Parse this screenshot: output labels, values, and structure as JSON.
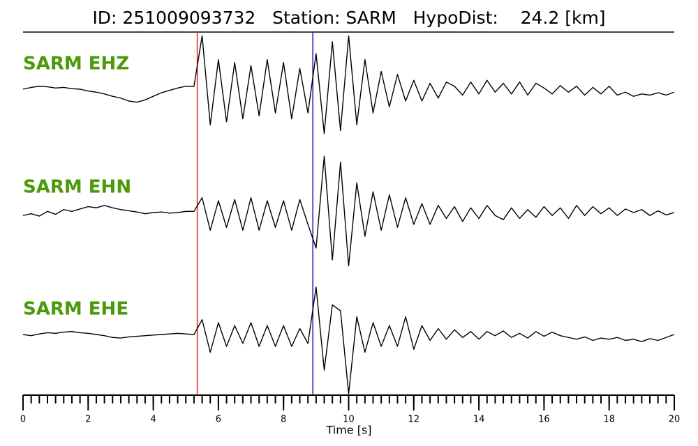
{
  "chart_data": {
    "type": "line",
    "title": "ID: 251009093732   Station: SARM   HypoDist:    24.2 [km]",
    "xlabel": "Time [s]",
    "xlim": [
      0,
      20
    ],
    "xticks": [
      0,
      2,
      4,
      6,
      8,
      10,
      12,
      14,
      16,
      18,
      20
    ],
    "x_minor_step": 0.25,
    "ylim": [
      -1,
      1
    ],
    "label_color": "#4a9a0a",
    "markers": [
      {
        "x": 5.35,
        "color": "#e8201a"
      },
      {
        "x": 8.9,
        "color": "#1a1ab8"
      }
    ],
    "x": [
      0,
      0.25,
      0.5,
      0.75,
      1,
      1.25,
      1.5,
      1.75,
      2,
      2.25,
      2.5,
      2.75,
      3,
      3.25,
      3.5,
      3.75,
      4,
      4.25,
      4.5,
      4.75,
      5,
      5.25,
      5.5,
      5.75,
      6,
      6.25,
      6.5,
      6.75,
      7,
      7.25,
      7.5,
      7.75,
      8,
      8.25,
      8.5,
      8.75,
      9,
      9.25,
      9.5,
      9.75,
      10,
      10.25,
      10.5,
      10.75,
      11,
      11.25,
      11.5,
      11.75,
      12,
      12.25,
      12.5,
      12.75,
      13,
      13.25,
      13.5,
      13.75,
      14,
      14.25,
      14.5,
      14.75,
      15,
      15.25,
      15.5,
      15.75,
      16,
      16.25,
      16.5,
      16.75,
      17,
      17.25,
      17.5,
      17.75,
      18,
      18.25,
      18.5,
      18.75,
      19,
      19.25,
      19.5,
      19.75,
      20
    ],
    "series": [
      {
        "name": "SARM EHZ",
        "color": "#000000",
        "values": [
          0,
          0.03,
          0.05,
          0.04,
          0.02,
          0.03,
          0.01,
          0,
          -0.03,
          -0.05,
          -0.08,
          -0.12,
          -0.15,
          -0.2,
          -0.22,
          -0.18,
          -0.12,
          -0.06,
          -0.02,
          0.02,
          0.05,
          0.05,
          0.9,
          -0.6,
          0.5,
          -0.55,
          0.45,
          -0.5,
          0.4,
          -0.45,
          0.5,
          -0.4,
          0.45,
          -0.5,
          0.35,
          -0.4,
          0.6,
          -0.75,
          0.8,
          -0.7,
          0.9,
          -0.6,
          0.5,
          -0.4,
          0.3,
          -0.3,
          0.25,
          -0.2,
          0.15,
          -0.2,
          0.1,
          -0.15,
          0.12,
          0.05,
          -0.1,
          0.12,
          -0.08,
          0.15,
          -0.05,
          0.1,
          -0.08,
          0.12,
          -0.1,
          0.1,
          0.02,
          -0.08,
          0.06,
          -0.05,
          0.05,
          -0.1,
          0.03,
          -0.08,
          0.05,
          -0.1,
          -0.05,
          -0.12,
          -0.08,
          -0.1,
          -0.06,
          -0.1,
          -0.05
        ]
      },
      {
        "name": "SARM EHN",
        "color": "#000000",
        "values": [
          -0.05,
          -0.02,
          -0.06,
          0.02,
          -0.03,
          0.05,
          0.02,
          0.06,
          0.1,
          0.08,
          0.12,
          0.08,
          0.05,
          0.03,
          0.01,
          -0.02,
          0,
          0.01,
          -0.01,
          0,
          0.02,
          0.02,
          0.25,
          -0.3,
          0.2,
          -0.25,
          0.22,
          -0.3,
          0.25,
          -0.3,
          0.2,
          -0.25,
          0.2,
          -0.3,
          0.22,
          -0.2,
          -0.6,
          0.95,
          -0.8,
          0.85,
          -0.9,
          0.5,
          -0.4,
          0.35,
          -0.3,
          0.3,
          -0.25,
          0.25,
          -0.2,
          0.15,
          -0.2,
          0.12,
          -0.1,
          0.1,
          -0.15,
          0.08,
          -0.1,
          0.12,
          -0.05,
          -0.12,
          0.08,
          -0.1,
          0.05,
          -0.08,
          0.1,
          -0.05,
          0.08,
          -0.1,
          0.12,
          -0.05,
          0.1,
          -0.02,
          0.08,
          -0.05,
          0.06,
          0,
          0.05,
          -0.05,
          0.03,
          -0.04,
          0
        ]
      },
      {
        "name": "SARM EHE",
        "color": "#000000",
        "values": [
          0,
          -0.02,
          0.01,
          0.03,
          0.02,
          0.04,
          0.05,
          0.03,
          0.02,
          0,
          -0.02,
          -0.05,
          -0.06,
          -0.04,
          -0.03,
          -0.02,
          -0.01,
          0,
          0.01,
          0.02,
          0.01,
          0,
          0.25,
          -0.3,
          0.2,
          -0.2,
          0.15,
          -0.15,
          0.2,
          -0.2,
          0.15,
          -0.2,
          0.15,
          -0.2,
          0.1,
          -0.15,
          0.8,
          -0.6,
          0.5,
          0.4,
          -1.0,
          0.3,
          -0.3,
          0.2,
          -0.2,
          0.15,
          -0.2,
          0.3,
          -0.25,
          0.15,
          -0.1,
          0.1,
          -0.08,
          0.08,
          -0.05,
          0.05,
          -0.08,
          0.05,
          -0.02,
          0.06,
          -0.05,
          0.02,
          -0.06,
          0.05,
          -0.03,
          0.04,
          -0.02,
          -0.05,
          -0.08,
          -0.04,
          -0.1,
          -0.06,
          -0.08,
          -0.05,
          -0.1,
          -0.08,
          -0.12,
          -0.07,
          -0.1,
          -0.05,
          0
        ]
      }
    ]
  }
}
